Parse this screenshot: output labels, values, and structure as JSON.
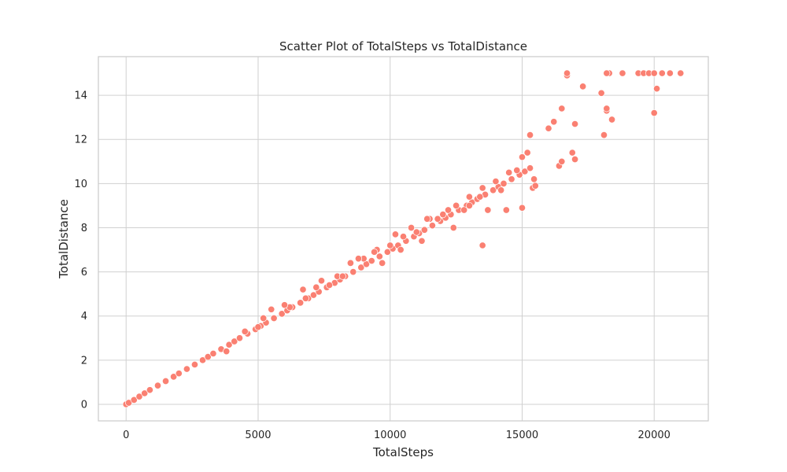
{
  "chart_data": {
    "type": "scatter",
    "title": "Scatter Plot of TotalSteps vs TotalDistance",
    "xlabel": "TotalSteps",
    "ylabel": "TotalDistance",
    "xlim": [
      -1050,
      22050
    ],
    "ylim": [
      -0.75,
      15.75
    ],
    "xticks": [
      0,
      5000,
      10000,
      15000,
      20000
    ],
    "xtick_labels": [
      "0",
      "5000",
      "10000",
      "15000",
      "20000"
    ],
    "yticks": [
      0,
      2,
      4,
      6,
      8,
      10,
      12,
      14
    ],
    "ytick_labels": [
      "0",
      "2",
      "4",
      "6",
      "8",
      "10",
      "12",
      "14"
    ],
    "grid": true,
    "point_color": "#fa8072",
    "series": [
      {
        "x": [
          0,
          100,
          300,
          500,
          700,
          900,
          1200,
          1500,
          1800,
          2000,
          2300,
          2600,
          2900,
          3100,
          3300,
          3600,
          3900,
          4100,
          4300,
          4600,
          4900,
          5100,
          5300,
          5600,
          5900,
          6100,
          6300,
          6600,
          6900,
          7100,
          7300,
          7600,
          7900,
          8100,
          8300,
          8600,
          8900,
          9100,
          9300,
          9600,
          9900,
          10100,
          10300,
          10600,
          10900,
          11100,
          11300,
          11600,
          11900,
          12100,
          12300,
          12600,
          12900,
          13100,
          13300,
          13600,
          13900,
          14100,
          14300,
          14600,
          14900,
          15100,
          15300,
          3800,
          4500,
          5000,
          5500,
          6200,
          6800,
          7200,
          7700,
          8000,
          8500,
          9000,
          9500,
          10000,
          10500,
          11000,
          11500,
          12000,
          12500,
          13000,
          13500,
          14000,
          14500,
          15000,
          5200,
          6000,
          6700,
          7400,
          8200,
          8800,
          9400,
          10200,
          10800,
          11400,
          12200,
          12800,
          13400,
          14200,
          14800,
          15200,
          9700,
          10400,
          11200,
          11800,
          12400,
          13000,
          13700,
          14400,
          15000,
          15400,
          15450,
          15500,
          15300,
          16000,
          16200,
          16500,
          16700,
          17000,
          17300,
          18000,
          18200,
          18300,
          18200,
          18400,
          18800,
          16400,
          16500,
          16900,
          17000,
          18100,
          16700,
          18200,
          18800,
          19400,
          19600,
          19800,
          20000,
          20300,
          20600,
          21000,
          20100,
          20000,
          13500
        ],
        "y": [
          0,
          0.07,
          0.2,
          0.35,
          0.5,
          0.65,
          0.85,
          1.05,
          1.25,
          1.4,
          1.6,
          1.8,
          2.0,
          2.15,
          2.3,
          2.5,
          2.7,
          2.85,
          3.0,
          3.2,
          3.4,
          3.55,
          3.7,
          3.9,
          4.1,
          4.25,
          4.4,
          4.6,
          4.8,
          4.95,
          5.1,
          5.3,
          5.5,
          5.65,
          5.8,
          6.0,
          6.2,
          6.35,
          6.5,
          6.7,
          6.9,
          7.05,
          7.2,
          7.4,
          7.6,
          7.75,
          7.9,
          8.1,
          8.3,
          8.45,
          8.6,
          8.8,
          9.0,
          9.15,
          9.3,
          9.5,
          9.7,
          9.85,
          10.0,
          10.2,
          10.4,
          10.55,
          10.7,
          2.4,
          3.3,
          3.5,
          4.3,
          4.4,
          4.8,
          5.3,
          5.4,
          5.8,
          6.4,
          6.6,
          7.0,
          7.2,
          7.6,
          7.8,
          8.4,
          8.6,
          9.0,
          9.4,
          9.8,
          10.1,
          10.5,
          11.2,
          3.9,
          4.5,
          5.2,
          5.6,
          5.8,
          6.6,
          6.9,
          7.7,
          8.0,
          8.4,
          8.8,
          8.8,
          9.4,
          9.7,
          10.6,
          11.4,
          6.4,
          7.0,
          7.4,
          8.4,
          8.0,
          9.0,
          8.8,
          8.8,
          8.9,
          9.8,
          10.2,
          9.9,
          12.2,
          12.5,
          12.8,
          13.4,
          14.9,
          12.7,
          14.4,
          14.1,
          13.3,
          15.0,
          13.4,
          12.9,
          15.0,
          10.8,
          11.0,
          11.4,
          11.1,
          12.2,
          15.0,
          15.0,
          15.0,
          15.0,
          15.0,
          15.0,
          15.0,
          15.0,
          15.0,
          15.0,
          14.3,
          13.2,
          7.2
        ]
      }
    ]
  }
}
